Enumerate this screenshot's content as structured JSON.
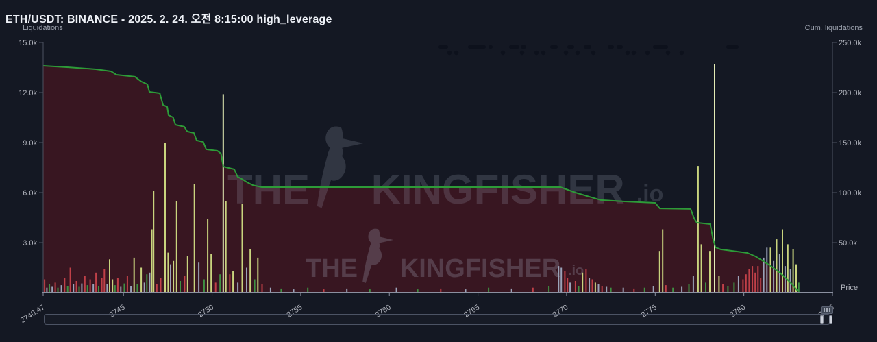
{
  "header": {
    "title": "ETH/USDT: BINANCE - 2025. 2. 24. 오전 8:15:00 high_leverage"
  },
  "watermark": {
    "word1": "THE",
    "word2": "KINGFISHER",
    "suffix": ".io",
    "logo": "kingfisher-bird-icon"
  },
  "colors": {
    "background": "#141823",
    "area_fill": "#381621",
    "line_green": "#2d9b38",
    "bar_yellow": "#c9d47e",
    "bar_pale": "#e2eab4",
    "bar_red": "#c04048",
    "bar_green": "#3f9143",
    "bar_gray": "#9aa3b8",
    "axis_line": "#4d5260",
    "x_axis_line": "#8b90a0",
    "tick_text": "#b2b5be",
    "watermark": "#a7adc0",
    "redacted": "#0d111c"
  },
  "chart_data": {
    "type": "mixed-bar-and-cumulative-line",
    "title": "ETH/USDT Binance liquidation map",
    "xlabel": "Price",
    "x_range": [
      2740.47,
      2785
    ],
    "left_axis": {
      "label": "Liquidations",
      "ticks": [
        "15.0k",
        "12.0k",
        "9.0k",
        "6.0k",
        "3.0k"
      ],
      "tick_values_k": [
        15,
        12,
        9,
        6,
        3
      ],
      "range_k": [
        0,
        15
      ]
    },
    "right_axis": {
      "label": "Cum. liquidations",
      "ticks": [
        "250.0k",
        "200.0k",
        "150.0k",
        "100.0k",
        "50.0k"
      ],
      "tick_values_k": [
        250,
        200,
        150,
        100,
        50
      ],
      "range_k": [
        0,
        250
      ]
    },
    "x_ticks": [
      "2740.47",
      "2745",
      "2750",
      "2755",
      "2760",
      "2765",
      "2770",
      "2775",
      "2780",
      "2785"
    ],
    "x_tick_values": [
      2740.47,
      2745,
      2750,
      2755,
      2760,
      2765,
      2770,
      2775,
      2780,
      2785
    ],
    "price_label": "Price",
    "cumulative_line_k": [
      [
        2740.47,
        226.7
      ],
      [
        2741.9,
        225.3
      ],
      [
        2743.45,
        223.3
      ],
      [
        2744.3,
        221.2
      ],
      [
        2744.6,
        217.8
      ],
      [
        2745.65,
        215.8
      ],
      [
        2746.0,
        211.0
      ],
      [
        2746.35,
        208.2
      ],
      [
        2746.46,
        200.7
      ],
      [
        2747.05,
        199.3
      ],
      [
        2747.23,
        187.7
      ],
      [
        2747.47,
        185.6
      ],
      [
        2747.54,
        177.4
      ],
      [
        2747.8,
        175.3
      ],
      [
        2747.93,
        167.8
      ],
      [
        2748.43,
        165.8
      ],
      [
        2748.6,
        161.0
      ],
      [
        2748.97,
        159.6
      ],
      [
        2749.13,
        152.1
      ],
      [
        2749.5,
        150.7
      ],
      [
        2749.67,
        143.2
      ],
      [
        2750.3,
        141.8
      ],
      [
        2750.5,
        139.0
      ],
      [
        2750.63,
        126.0
      ],
      [
        2751.25,
        123.3
      ],
      [
        2751.44,
        115.8
      ],
      [
        2751.67,
        113.7
      ],
      [
        2751.98,
        110.3
      ],
      [
        2752.3,
        107.5
      ],
      [
        2752.8,
        105.5
      ],
      [
        2769.65,
        105.5
      ],
      [
        2770.5,
        100.0
      ],
      [
        2771.93,
        92.5
      ],
      [
        2773.28,
        91.1
      ],
      [
        2775.0,
        89.7
      ],
      [
        2775.26,
        84.2
      ],
      [
        2777.0,
        83.6
      ],
      [
        2777.2,
        74.0
      ],
      [
        2777.35,
        69.9
      ],
      [
        2778.1,
        68.5
      ],
      [
        2778.25,
        54.8
      ],
      [
        2778.4,
        45.2
      ],
      [
        2778.7,
        43.2
      ],
      [
        2780.2,
        39.7
      ],
      [
        2780.65,
        36.3
      ],
      [
        2781.1,
        31.5
      ],
      [
        2781.57,
        26.0
      ],
      [
        2782.03,
        19.9
      ],
      [
        2782.42,
        13.7
      ],
      [
        2782.73,
        8.2
      ],
      [
        2783.0,
        2.7
      ],
      [
        2783.1,
        0.5
      ]
    ],
    "bars_k": [
      [
        2740.55,
        0.8,
        "r"
      ],
      [
        2740.68,
        0.3,
        "b"
      ],
      [
        2740.82,
        0.5,
        "g"
      ],
      [
        2740.98,
        0.35,
        "b"
      ],
      [
        2741.15,
        0.6,
        "r"
      ],
      [
        2741.3,
        0.3,
        "g"
      ],
      [
        2741.5,
        0.45,
        "b"
      ],
      [
        2741.68,
        0.9,
        "r"
      ],
      [
        2741.85,
        0.4,
        "g"
      ],
      [
        2742.0,
        1.5,
        "r"
      ],
      [
        2742.18,
        0.5,
        "b"
      ],
      [
        2742.35,
        0.7,
        "r"
      ],
      [
        2742.5,
        0.35,
        "g"
      ],
      [
        2742.65,
        0.55,
        "b"
      ],
      [
        2742.82,
        1.0,
        "r"
      ],
      [
        2742.97,
        0.45,
        "g"
      ],
      [
        2743.12,
        0.8,
        "r"
      ],
      [
        2743.3,
        0.5,
        "b"
      ],
      [
        2743.45,
        1.2,
        "r"
      ],
      [
        2743.6,
        0.4,
        "g"
      ],
      [
        2743.78,
        0.9,
        "r"
      ],
      [
        2743.92,
        1.4,
        "r"
      ],
      [
        2744.08,
        0.5,
        "b"
      ],
      [
        2744.22,
        2.0,
        "y"
      ],
      [
        2744.38,
        0.8,
        "y"
      ],
      [
        2744.52,
        0.45,
        "g"
      ],
      [
        2744.68,
        0.9,
        "r"
      ],
      [
        2744.85,
        0.35,
        "b"
      ],
      [
        2745.05,
        0.55,
        "g"
      ],
      [
        2745.22,
        1.0,
        "r"
      ],
      [
        2745.42,
        0.4,
        "b"
      ],
      [
        2745.6,
        2.1,
        "y"
      ],
      [
        2745.78,
        0.5,
        "g"
      ],
      [
        2746.0,
        1.5,
        "y"
      ],
      [
        2746.18,
        0.6,
        "b"
      ],
      [
        2746.32,
        1.1,
        "g"
      ],
      [
        2746.48,
        1.2,
        "b"
      ],
      [
        2746.6,
        3.8,
        "y"
      ],
      [
        2746.7,
        6.1,
        "y"
      ],
      [
        2746.88,
        0.5,
        "r"
      ],
      [
        2747.1,
        0.9,
        "r"
      ],
      [
        2747.35,
        9.0,
        "y"
      ],
      [
        2747.52,
        2.4,
        "y"
      ],
      [
        2747.66,
        1.7,
        "b"
      ],
      [
        2747.82,
        1.9,
        "y"
      ],
      [
        2748.0,
        5.5,
        "y"
      ],
      [
        2748.2,
        0.7,
        "g"
      ],
      [
        2748.45,
        1.0,
        "r"
      ],
      [
        2748.62,
        2.2,
        "y"
      ],
      [
        2749.0,
        6.5,
        "y"
      ],
      [
        2749.25,
        1.8,
        "b"
      ],
      [
        2749.55,
        0.8,
        "g"
      ],
      [
        2749.75,
        4.4,
        "y"
      ],
      [
        2749.95,
        2.3,
        "y"
      ],
      [
        2750.2,
        0.6,
        "r"
      ],
      [
        2750.45,
        1.1,
        "g"
      ],
      [
        2750.63,
        11.9,
        "p"
      ],
      [
        2750.78,
        5.5,
        "y"
      ],
      [
        2751.0,
        1.1,
        "r"
      ],
      [
        2751.18,
        1.3,
        "y"
      ],
      [
        2751.45,
        0.6,
        "b"
      ],
      [
        2751.7,
        5.3,
        "y"
      ],
      [
        2751.95,
        1.5,
        "b"
      ],
      [
        2752.15,
        2.6,
        "y"
      ],
      [
        2752.4,
        0.8,
        "g"
      ],
      [
        2752.58,
        2.1,
        "y"
      ],
      [
        2752.82,
        0.5,
        "r"
      ],
      [
        2753.3,
        0.3,
        "b"
      ],
      [
        2753.9,
        0.25,
        "g"
      ],
      [
        2754.6,
        0.2,
        "b"
      ],
      [
        2755.4,
        0.3,
        "g"
      ],
      [
        2756.3,
        0.2,
        "r"
      ],
      [
        2757.6,
        0.25,
        "b"
      ],
      [
        2758.9,
        0.2,
        "g"
      ],
      [
        2760.4,
        0.3,
        "b"
      ],
      [
        2761.6,
        0.2,
        "g"
      ],
      [
        2762.9,
        0.25,
        "r"
      ],
      [
        2764.3,
        0.2,
        "b"
      ],
      [
        2765.6,
        0.3,
        "g"
      ],
      [
        2766.9,
        0.25,
        "b"
      ],
      [
        2768.1,
        0.3,
        "r"
      ],
      [
        2769.0,
        0.4,
        "g"
      ],
      [
        2769.55,
        1.6,
        "b"
      ],
      [
        2769.7,
        1.5,
        "b"
      ],
      [
        2769.9,
        1.3,
        "r"
      ],
      [
        2770.05,
        0.9,
        "r"
      ],
      [
        2770.2,
        0.6,
        "b"
      ],
      [
        2770.5,
        0.7,
        "r"
      ],
      [
        2770.68,
        0.4,
        "g"
      ],
      [
        2770.9,
        1.2,
        "y"
      ],
      [
        2771.1,
        1.4,
        "r"
      ],
      [
        2771.28,
        0.9,
        "b"
      ],
      [
        2771.45,
        0.8,
        "r"
      ],
      [
        2771.62,
        0.6,
        "y"
      ],
      [
        2771.8,
        0.5,
        "b"
      ],
      [
        2772.0,
        0.4,
        "r"
      ],
      [
        2772.25,
        0.35,
        "b"
      ],
      [
        2772.5,
        0.3,
        "g"
      ],
      [
        2773.2,
        0.3,
        "b"
      ],
      [
        2773.8,
        0.25,
        "r"
      ],
      [
        2774.4,
        0.3,
        "g"
      ],
      [
        2774.9,
        0.4,
        "b"
      ],
      [
        2775.25,
        2.5,
        "y"
      ],
      [
        2775.42,
        3.8,
        "y"
      ],
      [
        2775.6,
        0.45,
        "r"
      ],
      [
        2776.0,
        0.3,
        "g"
      ],
      [
        2776.5,
        0.35,
        "b"
      ],
      [
        2776.9,
        0.5,
        "g"
      ],
      [
        2777.15,
        1.0,
        "b"
      ],
      [
        2777.42,
        7.6,
        "y"
      ],
      [
        2777.6,
        2.9,
        "y"
      ],
      [
        2777.85,
        0.6,
        "g"
      ],
      [
        2778.08,
        2.5,
        "y"
      ],
      [
        2778.35,
        13.7,
        "p"
      ],
      [
        2778.6,
        1.0,
        "y"
      ],
      [
        2778.82,
        0.5,
        "r"
      ],
      [
        2779.1,
        0.4,
        "g"
      ],
      [
        2779.45,
        0.6,
        "g"
      ],
      [
        2779.7,
        1.0,
        "b"
      ],
      [
        2779.95,
        0.8,
        "r"
      ],
      [
        2780.12,
        1.1,
        "r"
      ],
      [
        2780.3,
        1.4,
        "r"
      ],
      [
        2780.48,
        1.6,
        "r"
      ],
      [
        2780.64,
        1.2,
        "r"
      ],
      [
        2780.8,
        1.6,
        "r"
      ],
      [
        2780.95,
        0.9,
        "r"
      ],
      [
        2781.12,
        2.1,
        "b"
      ],
      [
        2781.3,
        2.7,
        "b"
      ],
      [
        2781.5,
        2.7,
        "y"
      ],
      [
        2781.68,
        1.9,
        "b"
      ],
      [
        2781.85,
        3.2,
        "y"
      ],
      [
        2782.02,
        2.3,
        "b"
      ],
      [
        2782.18,
        3.8,
        "y"
      ],
      [
        2782.33,
        1.6,
        "b"
      ],
      [
        2782.48,
        2.9,
        "y"
      ],
      [
        2782.63,
        1.4,
        "b"
      ],
      [
        2782.78,
        2.6,
        "y"
      ],
      [
        2782.95,
        1.7,
        "y"
      ],
      [
        2783.1,
        0.6,
        "g"
      ]
    ],
    "legend": "redacted (blurred marks at top of plot)"
  },
  "redacted_marks": {
    "dashes": [
      [
        640,
        14
      ],
      [
        683,
        26
      ],
      [
        713,
        6
      ],
      [
        743,
        15
      ],
      [
        760,
        8
      ],
      [
        803,
        11
      ],
      [
        828,
        10
      ],
      [
        852,
        11
      ],
      [
        887,
        9
      ],
      [
        900,
        9
      ],
      [
        953,
        22
      ],
      [
        1060,
        18
      ]
    ],
    "dots": [
      656,
      666,
      734,
      762,
      783,
      793,
      826,
      843,
      866,
      916,
      925,
      945,
      975,
      995
    ]
  },
  "scrollbar": {
    "present": true,
    "drag_icon": "drag-handle-dots-icon"
  }
}
